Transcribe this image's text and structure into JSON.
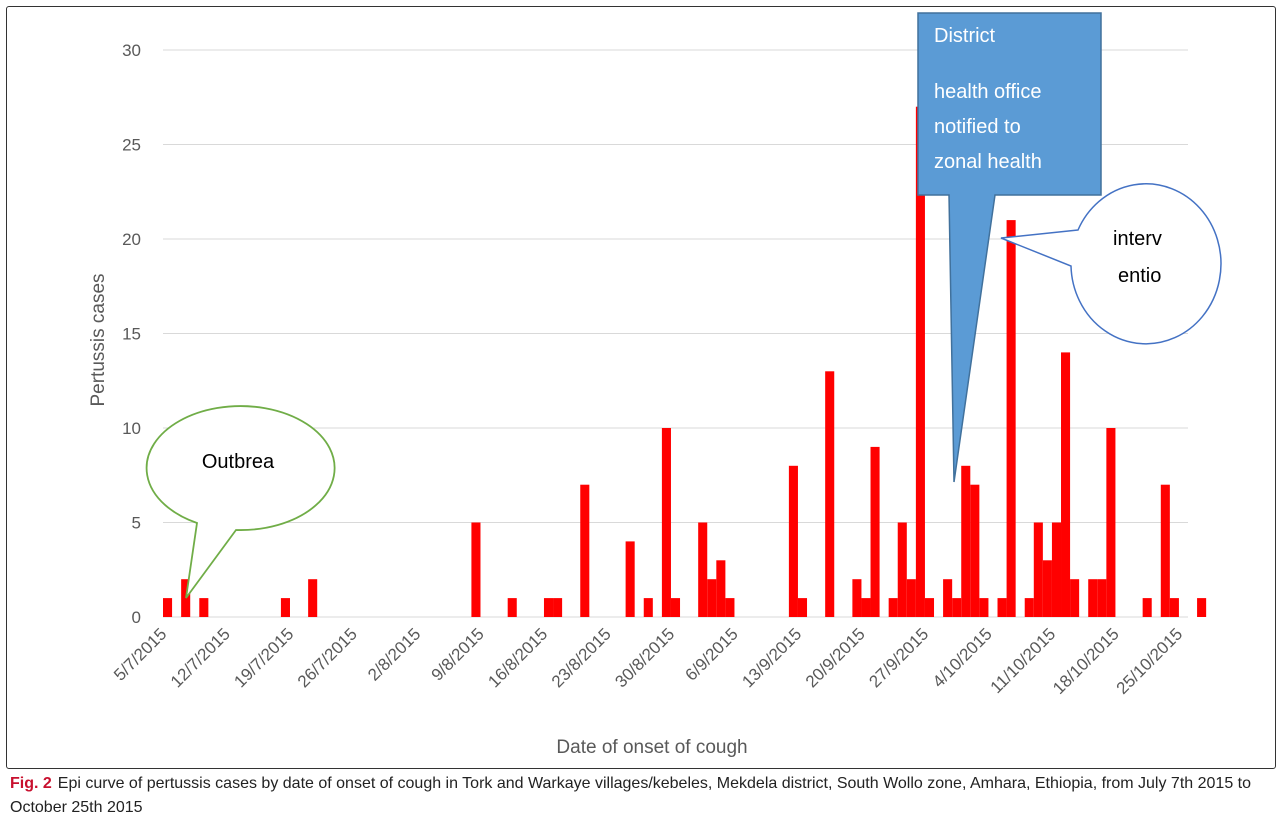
{
  "caption": {
    "label": "Fig. 2",
    "text": "Epi curve of pertussis cases by date of onset of cough in Tork and Warkaye villages/kebeles, Mekdela district, South Wollo zone, Amhara, Ethiopia, from July 7th 2015 to October 25th 2015"
  },
  "colors": {
    "bar": "#ff0000",
    "grid": "#d9d9d9",
    "callout_blue": "#5b9bd5",
    "callout_green": "#70ad47",
    "callout_circle": "#4472c4"
  },
  "chart_data": {
    "type": "bar",
    "xlabel": "Date of onset of cough",
    "ylabel": "Pertussis cases",
    "ylim": [
      0,
      30
    ],
    "yticks": [
      "0",
      "5",
      "10",
      "15",
      "20",
      "25",
      "30"
    ],
    "grid": true,
    "legend": "none",
    "x_tick_labels": [
      "5/7/2015",
      "12/7/2015",
      "19/7/2015",
      "26/7/2015",
      "2/8/2015",
      "9/8/2015",
      "16/8/2015",
      "23/8/2015",
      "30/8/2015",
      "6/9/2015",
      "13/9/2015",
      "20/9/2015",
      "27/9/2015",
      "4/10/2015",
      "11/10/2015",
      "18/10/2015",
      "25/10/2015"
    ],
    "categories": [
      "5/7/2015",
      "7/7/2015",
      "9/7/2015",
      "18/7/2015",
      "21/7/2015",
      "8/8/2015",
      "12/8/2015",
      "16/8/2015",
      "17/8/2015",
      "20/8/2015",
      "25/8/2015",
      "27/8/2015",
      "29/8/2015",
      "30/8/2015",
      "2/9/2015",
      "3/9/2015",
      "4/9/2015",
      "5/9/2015",
      "12/9/2015",
      "13/9/2015",
      "16/9/2015",
      "19/9/2015",
      "20/9/2015",
      "21/9/2015",
      "23/9/2015",
      "24/9/2015",
      "25/9/2015",
      "26/9/2015",
      "27/9/2015",
      "29/9/2015",
      "30/9/2015",
      "1/10/2015",
      "2/10/2015",
      "3/10/2015",
      "5/10/2015",
      "6/10/2015",
      "8/10/2015",
      "9/10/2015",
      "10/10/2015",
      "11/10/2015",
      "12/10/2015",
      "13/10/2015",
      "15/10/2015",
      "16/10/2015",
      "17/10/2015",
      "21/10/2015",
      "23/10/2015",
      "24/10/2015",
      "27/10/2015"
    ],
    "values": [
      1,
      2,
      1,
      1,
      2,
      5,
      1,
      1,
      1,
      7,
      4,
      1,
      10,
      1,
      5,
      2,
      3,
      1,
      8,
      1,
      13,
      2,
      1,
      9,
      1,
      5,
      2,
      27,
      1,
      2,
      1,
      8,
      7,
      1,
      1,
      21,
      1,
      5,
      3,
      5,
      14,
      2,
      2,
      2,
      10,
      1,
      7,
      1,
      1
    ],
    "annotations": [
      {
        "kind": "callout-oval",
        "text": "Outbrea",
        "points_to": "7/7/2015"
      },
      {
        "kind": "callout-rect",
        "lines": [
          "District",
          "health office",
          "notified to",
          "zonal health"
        ],
        "points_to": "1/10/2015"
      },
      {
        "kind": "callout-oval",
        "lines": [
          "interv",
          "entio"
        ],
        "points_to": "6/10/2015"
      }
    ]
  }
}
